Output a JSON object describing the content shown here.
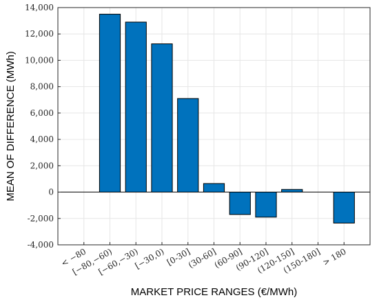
{
  "chart_data": {
    "type": "bar",
    "categories": [
      "< −80",
      "[−80,−60)",
      "[−60,−30)",
      "[−30,0)",
      "[0-30]",
      "(30-60]",
      "(60-90]",
      "(90-120]",
      "(120-150]",
      "(150-180]",
      "> 180"
    ],
    "values": [
      0,
      13500,
      12900,
      11250,
      7100,
      650,
      -1700,
      -1900,
      200,
      0,
      -2350
    ],
    "xlabel": "MARKET PRICE RANGES (€/MWh)",
    "ylabel": "MEAN OF DIFFERENCE (MWh)",
    "ylim": [
      -4000,
      14000
    ],
    "yticks": [
      -4000,
      -2000,
      0,
      2000,
      4000,
      6000,
      8000,
      10000,
      12000,
      14000
    ],
    "ytick_labels": [
      "-4,000",
      "-2,000",
      "0",
      "2,000",
      "4,000",
      "6,000",
      "8,000",
      "10,000",
      "12,000",
      "14,000"
    ],
    "grid": true,
    "bar_color": "#0072BD",
    "bar_edge_color": "#000000"
  }
}
